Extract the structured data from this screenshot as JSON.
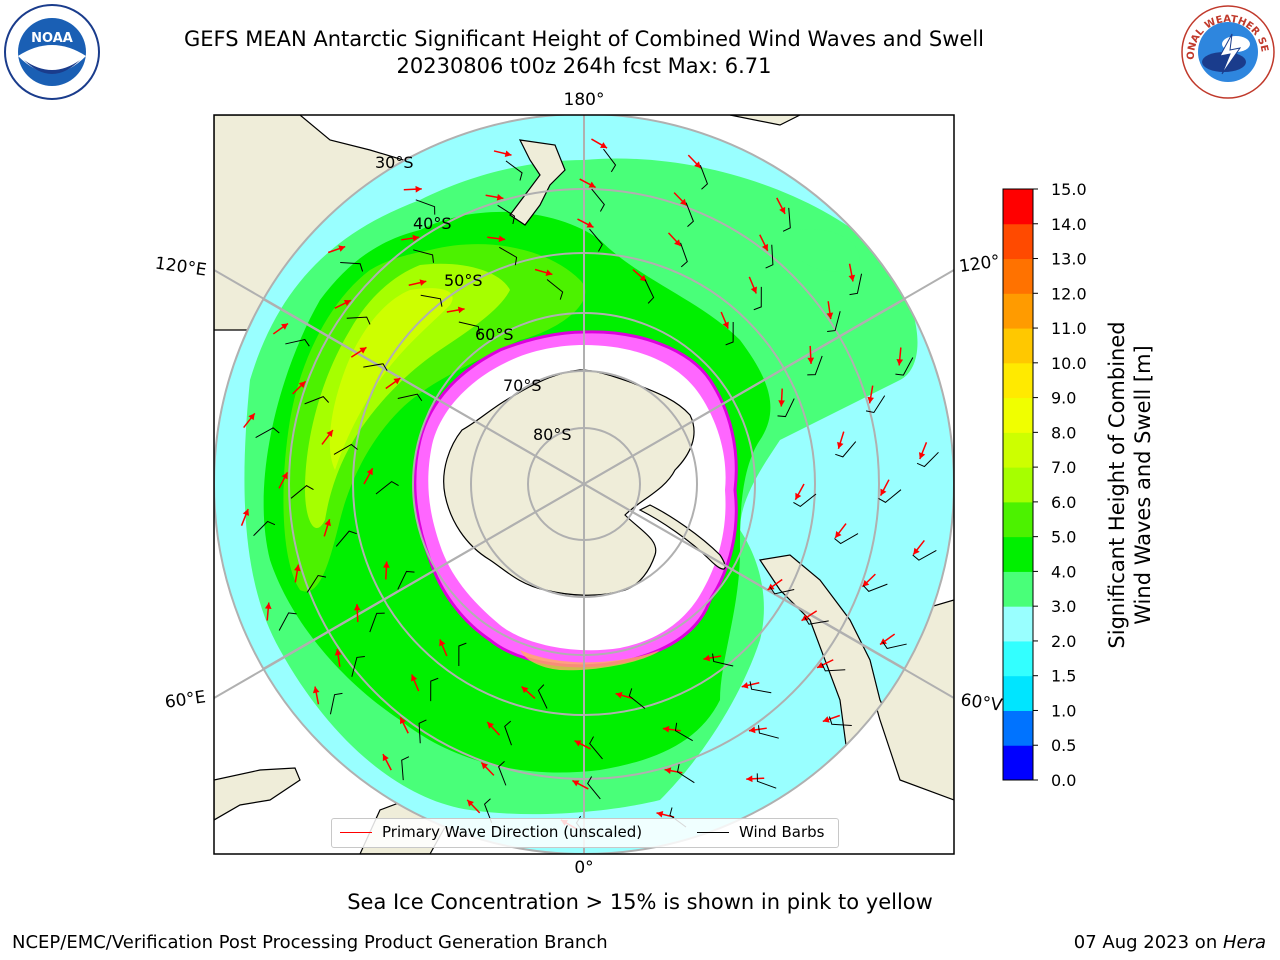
{
  "title": {
    "line1": "GEFS MEAN Antarctic Significant Height of Combined Wind Waves and Swell",
    "line2": "20230806 t00z 264h fcst   Max: 6.71"
  },
  "logos": {
    "left": "NOAA",
    "right": "NATIONAL WEATHER SERVICE"
  },
  "map": {
    "lon_labels": {
      "top": "180°",
      "bottom": "0°",
      "left_upper": "120°E",
      "left_lower": "60°E",
      "right_upper": "120°",
      "right_lower": "60°V"
    },
    "lat_labels": [
      "30°S",
      "40°S",
      "50°S",
      "60°S",
      "70°S",
      "80°S"
    ]
  },
  "legend": {
    "wave_label": "Primary Wave Direction (unscaled)",
    "barb_label": "Wind Barbs",
    "wave_color": "#ff0000",
    "barb_color": "#000000"
  },
  "colorbar": {
    "title_line1": "Significant Height of Combined",
    "title_line2": "Wind Waves and Swell [m]",
    "ticks": [
      "0.0",
      "0.5",
      "1.0",
      "1.5",
      "2.0",
      "3.0",
      "4.0",
      "5.0",
      "6.0",
      "7.0",
      "8.0",
      "9.0",
      "10.0",
      "11.0",
      "12.0",
      "13.0",
      "14.0",
      "15.0"
    ],
    "colors": [
      "#0000ff",
      "#0073ff",
      "#00e5ff",
      "#33ffff",
      "#99ffff",
      "#49ff79",
      "#00f000",
      "#4cf200",
      "#a6ff00",
      "#cdff00",
      "#f0ff00",
      "#ffea00",
      "#ffc800",
      "#ff9b00",
      "#ff7200",
      "#ff4a00",
      "#ff0000"
    ]
  },
  "subtitle": "Sea Ice Concentration > 15% is shown in pink to yellow",
  "footer": {
    "left": "NCEP/EMC/Verification Post Processing Product Generation Branch",
    "right_date": "07 Aug 2023 on ",
    "right_host": "Hera"
  }
}
